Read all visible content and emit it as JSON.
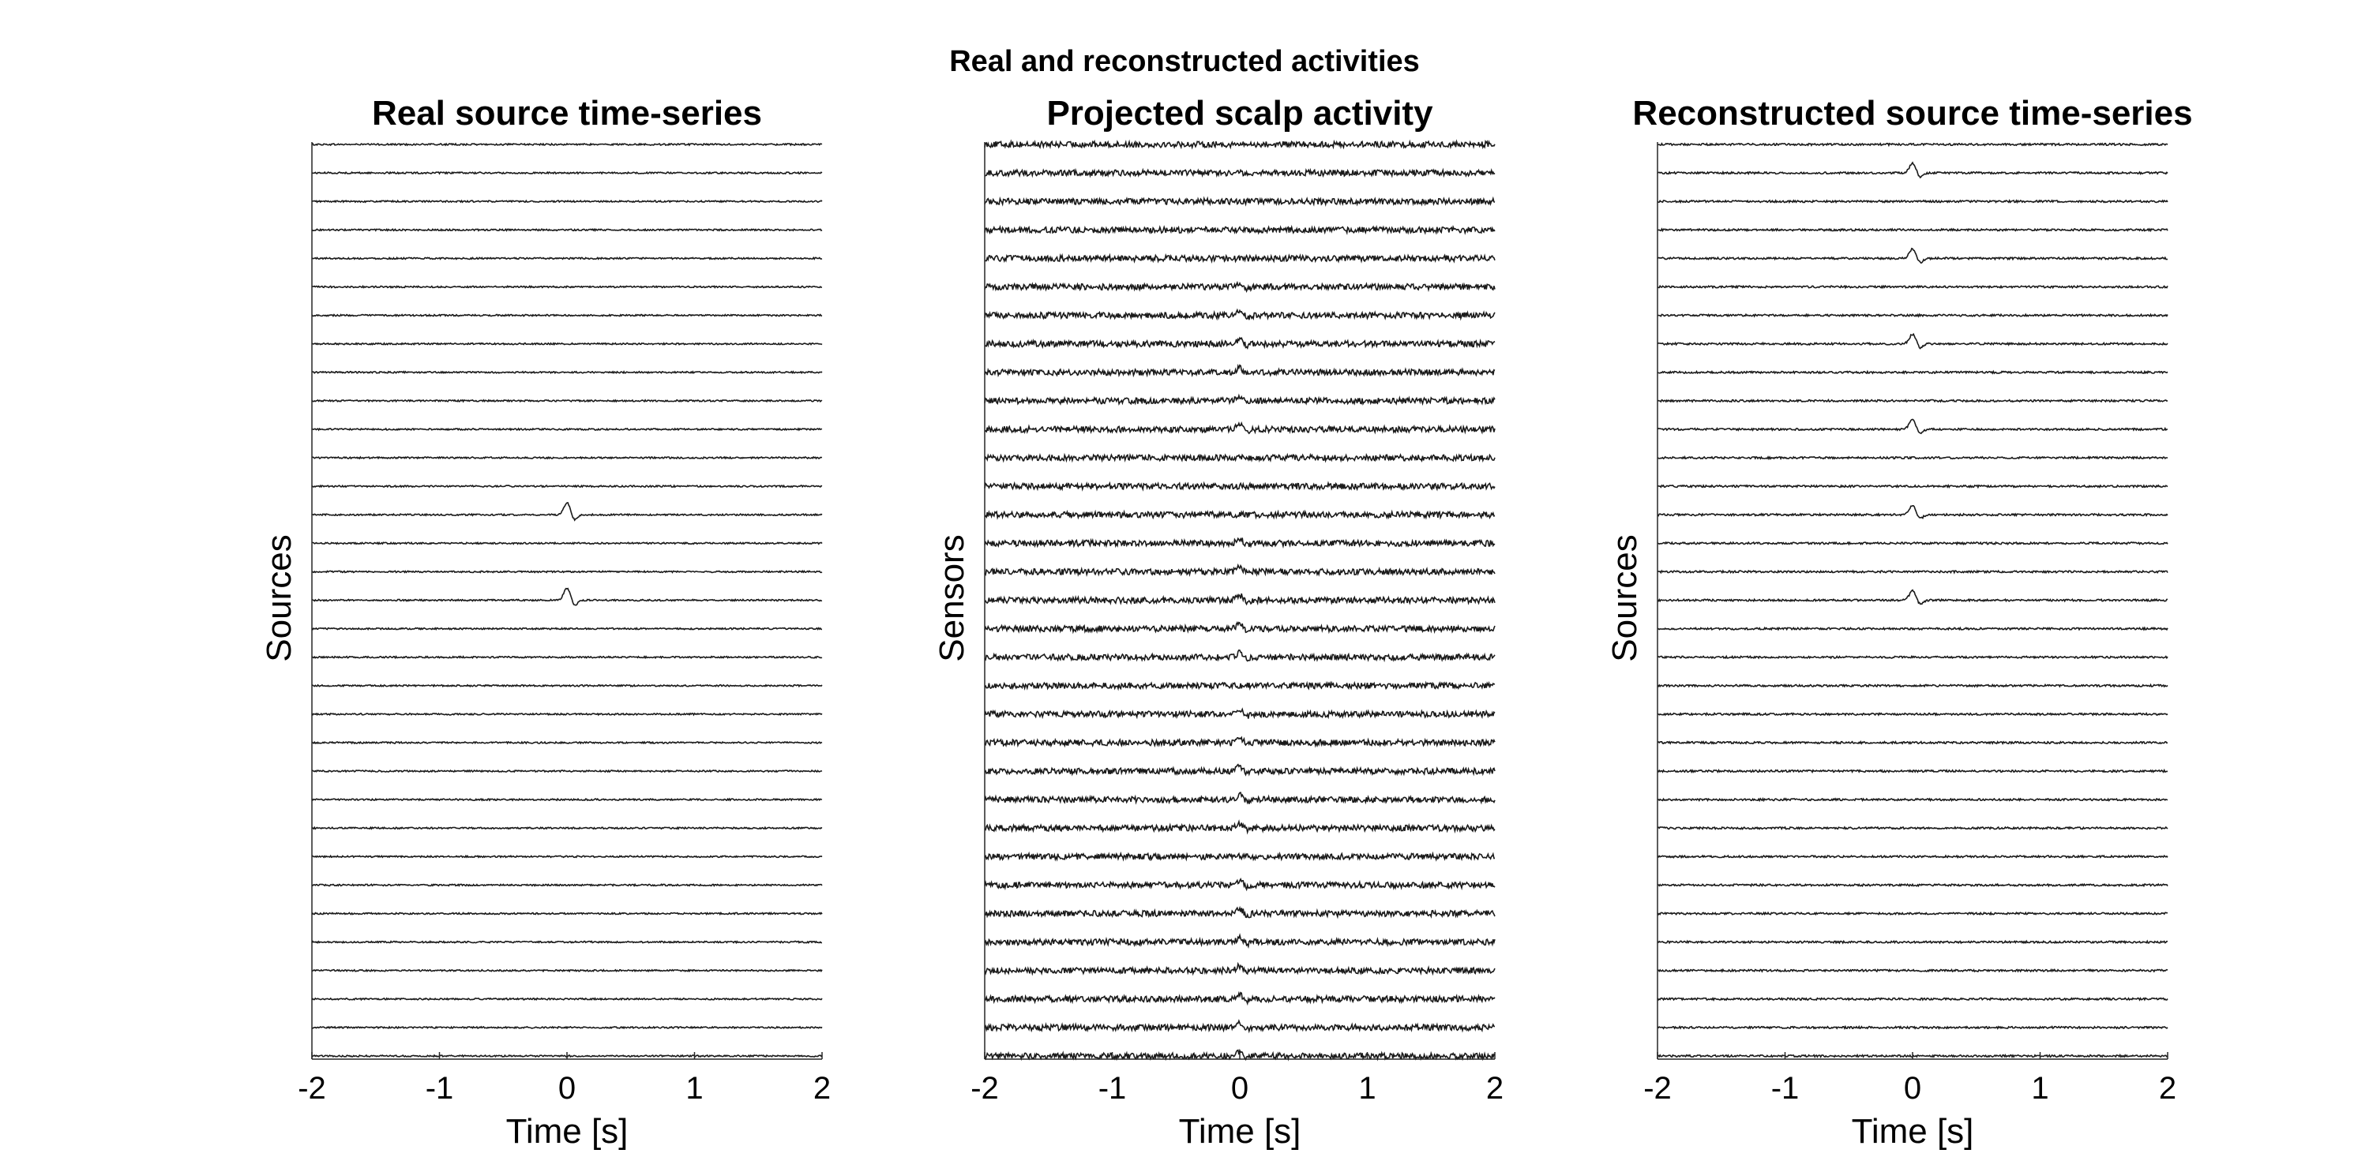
{
  "figure": {
    "title": "Real and reconstructed activities"
  },
  "chart_data": [
    {
      "type": "line",
      "title": "Real source time-series",
      "xlabel": "Time [s]",
      "ylabel": "Sources",
      "xlim": [
        -2,
        2
      ],
      "xticks": [
        "-2",
        "-1",
        "0",
        "1",
        "2"
      ],
      "num_traces": 33,
      "trace_color": "#1a1a1a",
      "noise_amplitude": 0.08,
      "active_traces": [
        13,
        16
      ],
      "spike_time": 0,
      "spike_amplitude": 1.2,
      "grid": false
    },
    {
      "type": "line",
      "title": "Projected scalp activity",
      "xlabel": "Time [s]",
      "ylabel": "Sensors",
      "xlim": [
        -2,
        2
      ],
      "xticks": [
        "-2",
        "-1",
        "0",
        "1",
        "2"
      ],
      "num_traces": 33,
      "trace_color": "#1a1a1a",
      "noise_amplitude": 0.3,
      "active_traces": [
        5,
        6,
        7,
        8,
        9,
        10,
        14,
        15,
        16,
        17,
        18,
        20,
        21,
        22,
        23,
        24,
        26,
        27,
        28,
        29,
        30,
        31,
        32
      ],
      "spike_time": 0,
      "spike_amplitude": 0.45,
      "grid": false
    },
    {
      "type": "line",
      "title": "Reconstructed source time-series",
      "xlabel": "Time [s]",
      "ylabel": "Sources",
      "xlim": [
        -2,
        2
      ],
      "xticks": [
        "-2",
        "-1",
        "0",
        "1",
        "2"
      ],
      "num_traces": 33,
      "trace_color": "#1a1a1a",
      "noise_amplitude": 0.1,
      "active_traces": [
        1,
        4,
        7,
        10,
        13,
        16
      ],
      "spike_time": 0,
      "spike_amplitude": 0.95,
      "grid": false
    }
  ]
}
